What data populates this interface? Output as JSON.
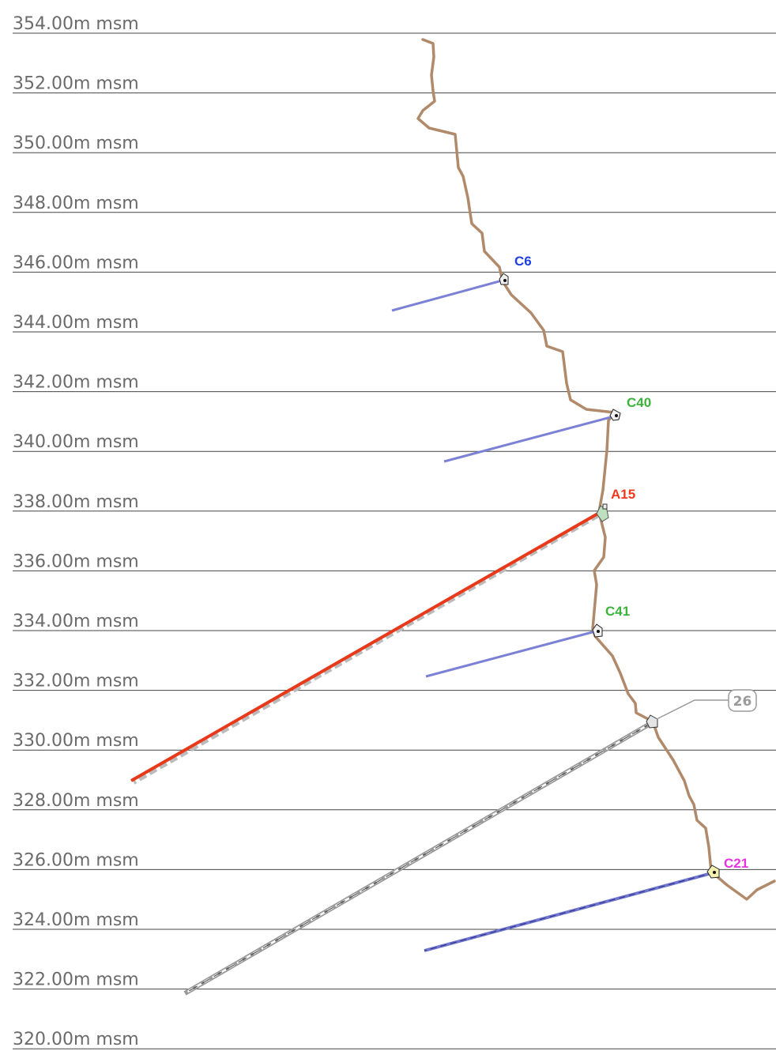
{
  "elevation_levels": [
    {
      "value": 354,
      "label": "354.00m msm"
    },
    {
      "value": 352,
      "label": "352.00m msm"
    },
    {
      "value": 350,
      "label": "350.00m msm"
    },
    {
      "value": 348,
      "label": "348.00m msm"
    },
    {
      "value": 346,
      "label": "346.00m msm"
    },
    {
      "value": 344,
      "label": "344.00m msm"
    },
    {
      "value": 342,
      "label": "342.00m msm"
    },
    {
      "value": 340,
      "label": "340.00m msm"
    },
    {
      "value": 338,
      "label": "338.00m msm"
    },
    {
      "value": 336,
      "label": "336.00m msm"
    },
    {
      "value": 334,
      "label": "334.00m msm"
    },
    {
      "value": 332,
      "label": "332.00m msm"
    },
    {
      "value": 330,
      "label": "330.00m msm"
    },
    {
      "value": 328,
      "label": "328.00m msm"
    },
    {
      "value": 326,
      "label": "326.00m msm"
    },
    {
      "value": 324,
      "label": "324.00m msm"
    },
    {
      "value": 322,
      "label": "322.00m msm"
    },
    {
      "value": 320,
      "label": "320.00m msm"
    }
  ],
  "anchors": [
    {
      "id": "C6",
      "label": "C6",
      "color": "#1f3fe0",
      "line_color": "#7b82d6",
      "style": "solid"
    },
    {
      "id": "C40",
      "label": "C40",
      "color": "#3cb43c",
      "line_color": "#7b82d6",
      "style": "solid"
    },
    {
      "id": "A15",
      "label": "A15",
      "color": "#ee3a1a",
      "line_color": "#e8391a",
      "style": "bold"
    },
    {
      "id": "C41",
      "label": "C41",
      "color": "#3cb43c",
      "line_color": "#7b82d6",
      "style": "solid"
    },
    {
      "id": "C21",
      "label": "C21",
      "color": "#e832e0",
      "line_color": "#6f76cc",
      "style": "dashed"
    }
  ],
  "callout": {
    "label": "26",
    "line_color": "#9a9a9a",
    "style": "dashed-gray"
  },
  "colors": {
    "grid_line": "#444444",
    "elevation_text": "#6b6b6b",
    "terrain_profile": "#b08a6a"
  }
}
